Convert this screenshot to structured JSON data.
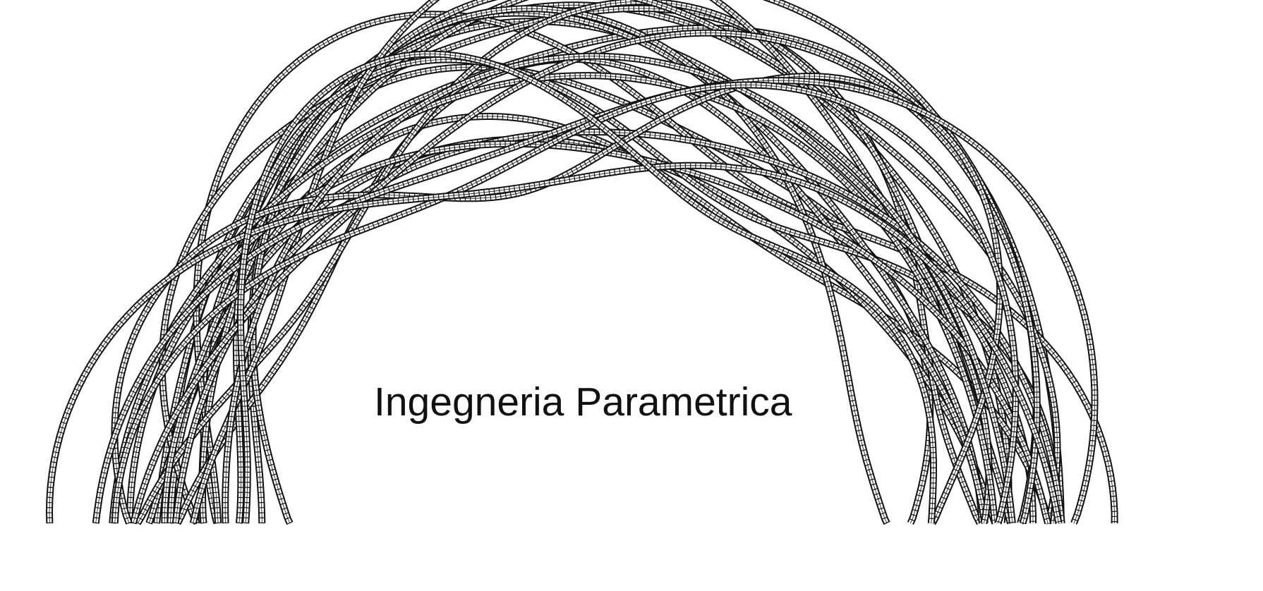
{
  "caption": "Ingegneria Parametrica",
  "colors": {
    "background": "#ffffff",
    "tube_outline": "#111111",
    "tube_fill": "#ffffff",
    "text": "#111111"
  },
  "illustration": {
    "subject": "parametric-lattice-arch-icon",
    "style": "wireframe tubes"
  }
}
